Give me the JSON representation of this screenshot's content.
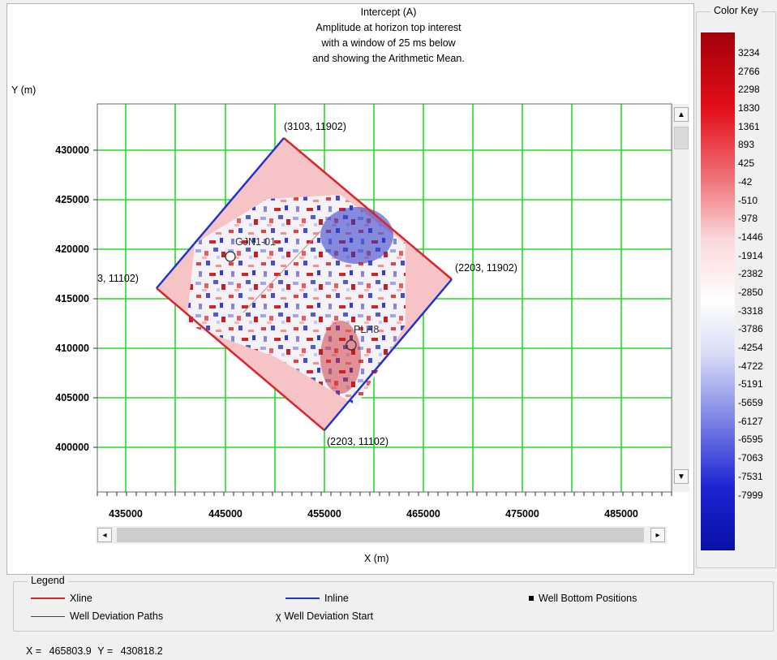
{
  "title_lines": [
    "Intercept (A)",
    "Amplitude at horizon top interest",
    "with a window of 25 ms below",
    "and showing the Arithmetic Mean."
  ],
  "y_axis_label": "Y (m)",
  "x_axis_label": "X (m)",
  "y_ticks": [
    "430000",
    "425000",
    "420000",
    "415000",
    "410000",
    "405000",
    "400000"
  ],
  "x_ticks": [
    "435000",
    "445000",
    "455000",
    "465000",
    "475000",
    "485000"
  ],
  "corner_labels": {
    "top": "(3103, 11902)",
    "right": "(2203, 11902)",
    "bottom": "(2203, 11102)",
    "left": "3, 11102)"
  },
  "wells": {
    "well_1": "GJN1-01",
    "well_2": "PLH8"
  },
  "color_key": {
    "title": "Color Key",
    "labels": [
      "3234",
      "2766",
      "2298",
      "1830",
      "1361",
      "893",
      "425",
      "-42",
      "-510",
      "-978",
      "-1446",
      "-1914",
      "-2382",
      "-2850",
      "-3318",
      "-3786",
      "-4254",
      "-4722",
      "-5191",
      "-5659",
      "-6127",
      "-6595",
      "-7063",
      "-7531",
      "-7999"
    ]
  },
  "legend": {
    "title": "Legend",
    "xline": "Xline",
    "inline": "Inline",
    "well_bottom": "Well Bottom Positions",
    "deviation_paths": "Well Deviation Paths",
    "deviation_start": "Well Deviation Start"
  },
  "status": {
    "x_label": "X =",
    "x_value": "465803.9",
    "y_label": "Y =",
    "y_value": "430818.2"
  },
  "colors": {
    "xline": "#d9262e",
    "inline": "#2233cc",
    "grid": "#22dd22"
  }
}
